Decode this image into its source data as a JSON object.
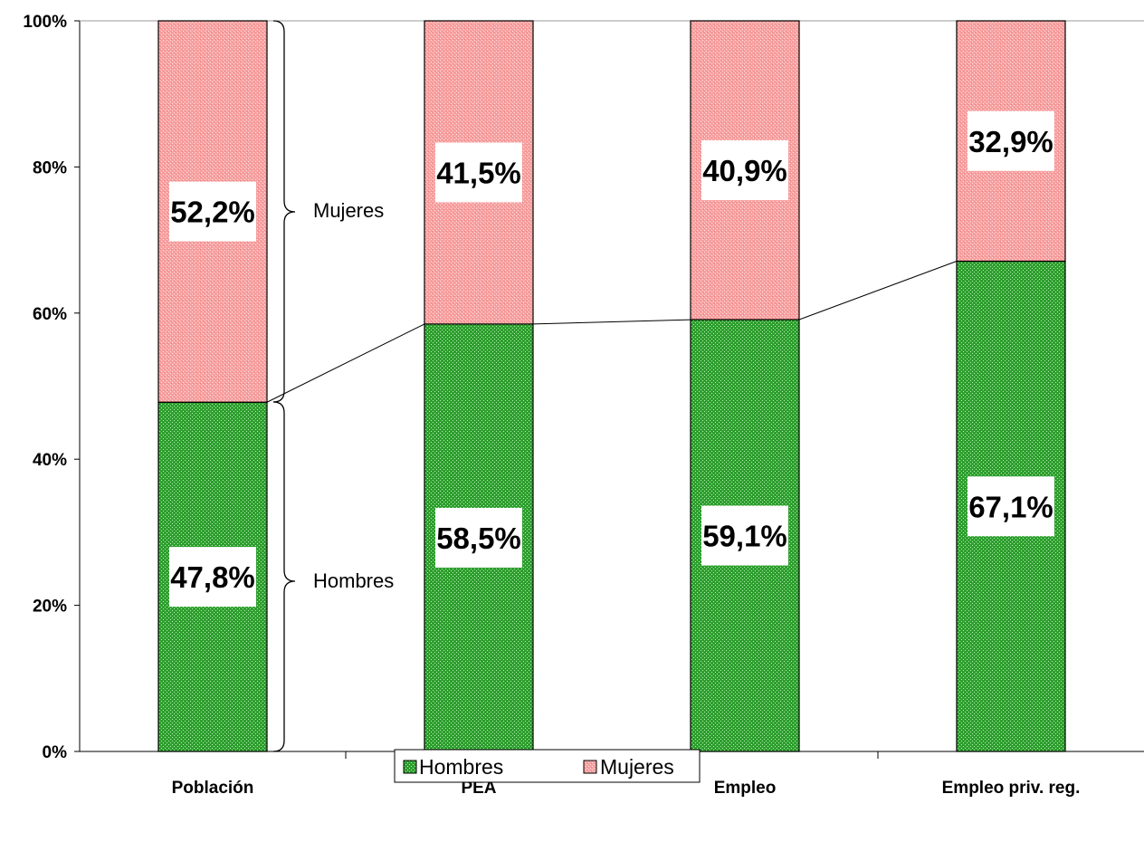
{
  "chart_data": {
    "type": "bar",
    "stacked": true,
    "categories": [
      "Población",
      "PEA",
      "Empleo",
      "Empleo priv. reg."
    ],
    "series": [
      {
        "name": "Hombres",
        "values": [
          47.8,
          58.5,
          59.1,
          67.1
        ],
        "labels": [
          "47,8%",
          "58,5%",
          "59,1%",
          "67,1%"
        ],
        "color": "#33a833"
      },
      {
        "name": "Mujeres",
        "values": [
          52.2,
          41.5,
          40.9,
          32.9
        ],
        "labels": [
          "52,2%",
          "41,5%",
          "40,9%",
          "32,9%"
        ],
        "color": "#f7a3a3"
      }
    ],
    "ylim": [
      0,
      100
    ],
    "yticks": [
      "0%",
      "20%",
      "40%",
      "60%",
      "80%",
      "100%"
    ],
    "grid": false,
    "legend": {
      "position": "bottom",
      "entries": [
        "Hombres",
        "Mujeres"
      ]
    },
    "annotations": {
      "upper": "Mujeres",
      "lower": "Hombres"
    }
  }
}
